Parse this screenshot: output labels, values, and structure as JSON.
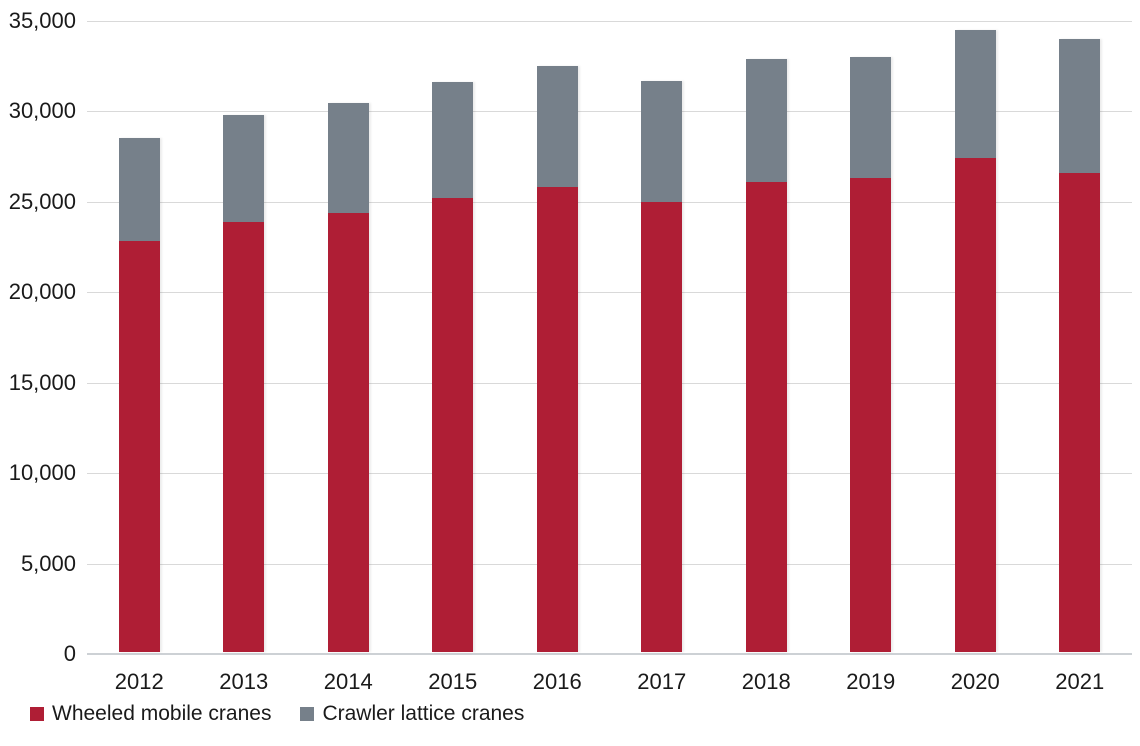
{
  "chart_data": {
    "type": "bar",
    "stacked": true,
    "title": "",
    "xlabel": "",
    "ylabel": "",
    "categories": [
      "2012",
      "2013",
      "2014",
      "2015",
      "2016",
      "2017",
      "2018",
      "2019",
      "2020",
      "2021"
    ],
    "series": [
      {
        "name": "Wheeled mobile cranes",
        "color": "#af1e35",
        "values": [
          22700,
          23800,
          24300,
          25100,
          25700,
          24900,
          26000,
          26200,
          27300,
          26500
        ]
      },
      {
        "name": "Crawler lattice cranes",
        "color": "#76808a",
        "values": [
          5700,
          5900,
          6100,
          6400,
          6700,
          6700,
          6800,
          6700,
          7100,
          7400
        ]
      }
    ],
    "totals": [
      28400,
      29700,
      30400,
      31500,
      32400,
      31600,
      32800,
      32900,
      34400,
      33900
    ],
    "ylim": [
      0,
      35000
    ],
    "ytick_interval": 5000,
    "ytick_labels": [
      "35,000",
      "30,000",
      "25,000",
      "20,000",
      "15,000",
      "10,000",
      "5,000",
      "0"
    ],
    "grid": true,
    "gridline_color": "#d9d9d9",
    "axis_text_color": "#1a1a1a",
    "legend_position": "bottom-left",
    "background_color": "#ffffff"
  }
}
